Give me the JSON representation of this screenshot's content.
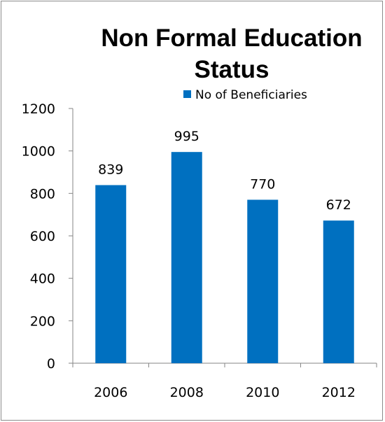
{
  "chart_data": {
    "type": "bar",
    "title_lines": [
      "Non Formal  Education",
      "Status"
    ],
    "categories": [
      "2006",
      "2008",
      "2010",
      "2012"
    ],
    "series": [
      {
        "name": "No of Beneficiaries",
        "values": [
          839,
          995,
          770,
          672
        ],
        "color": "#0070C0"
      }
    ],
    "data_labels": [
      "839",
      "995",
      "770",
      "672"
    ],
    "y_ticks": [
      "0",
      "200",
      "400",
      "600",
      "800",
      "1000",
      "1200"
    ],
    "ylim": [
      0,
      1200
    ],
    "grid": false,
    "legend_position": "top"
  }
}
